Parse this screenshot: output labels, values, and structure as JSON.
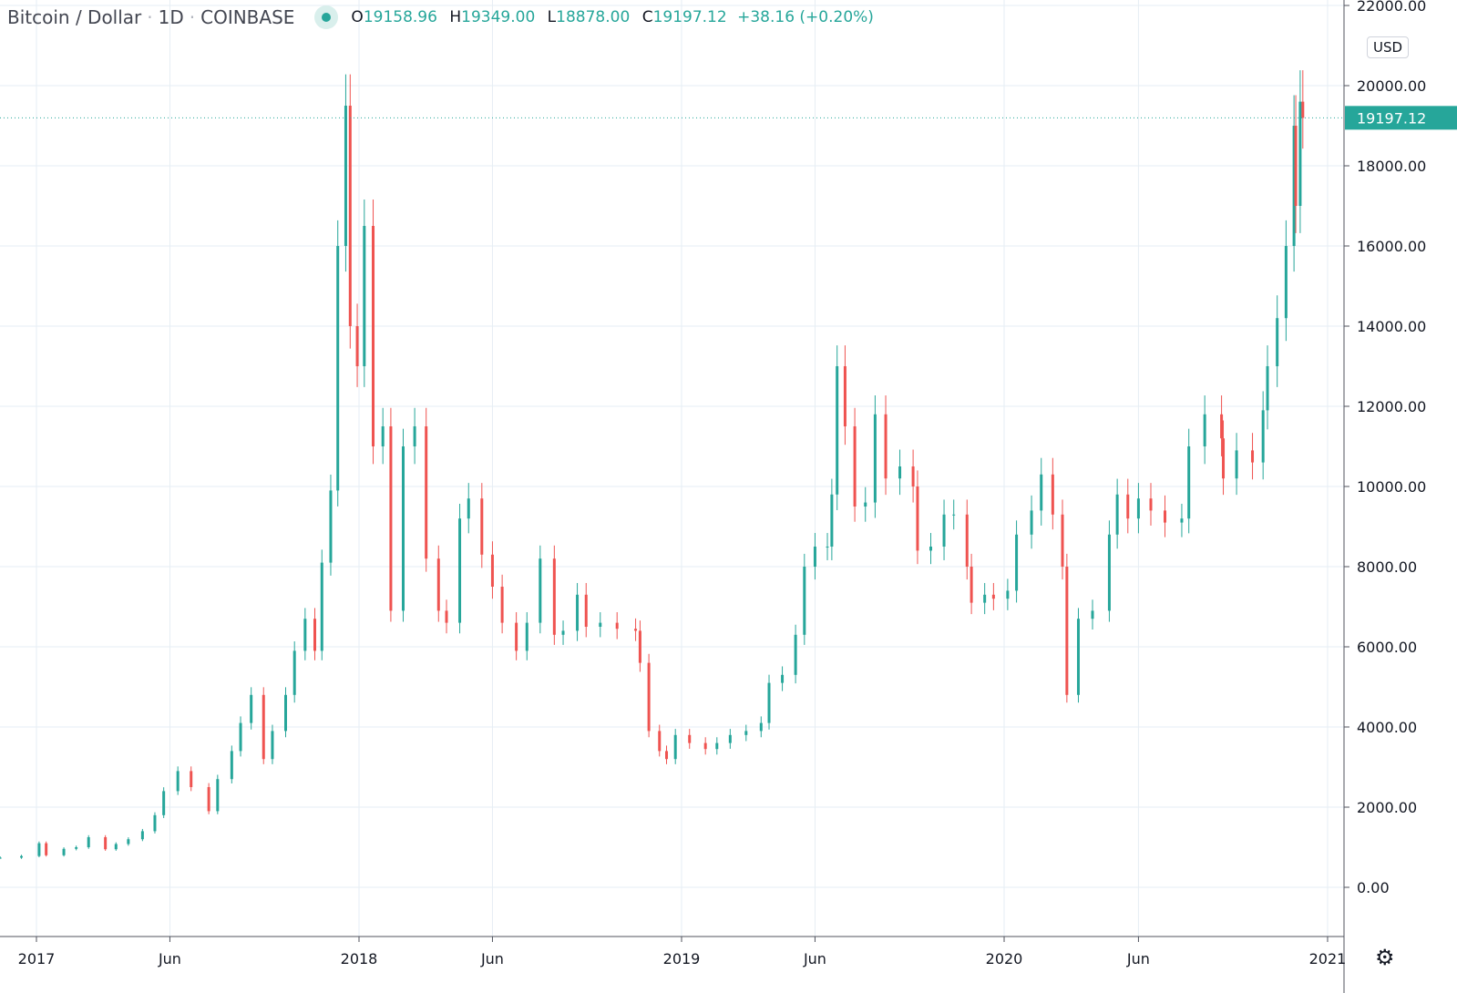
{
  "legend": {
    "symbol": "Bitcoin / Dollar",
    "interval": "1D",
    "exchange": "COINBASE",
    "open": "19158.96",
    "high": "19349.00",
    "low": "18878.00",
    "close": "19197.12",
    "change": "+38.16 (+0.20%)",
    "labels": {
      "o": "O",
      "h": "H",
      "l": "L",
      "c": "C"
    }
  },
  "currency": "USD",
  "icons": {
    "settings": "gear-icon",
    "status": "market-status-dot"
  },
  "colors": {
    "up": "#26a69a",
    "down": "#ef5350",
    "grid": "#e6eef4",
    "axis": "#131722"
  },
  "chart_data": {
    "type": "candlestick",
    "ylim": [
      -1200,
      22000
    ],
    "yticks": [
      0,
      2000,
      4000,
      6000,
      8000,
      10000,
      12000,
      14000,
      16000,
      18000,
      20000,
      22000
    ],
    "ytick_labels": [
      "0.00",
      "2000.00",
      "4000.00",
      "6000.00",
      "8000.00",
      "10000.00",
      "12000.00",
      "14000.00",
      "16000.00",
      "18000.00",
      "20000.00",
      "22000.00"
    ],
    "xticks": [
      {
        "date": "2017-01-01",
        "label": "2017"
      },
      {
        "date": "2017-06-01",
        "label": "Jun"
      },
      {
        "date": "2018-01-01",
        "label": "2018"
      },
      {
        "date": "2018-06-01",
        "label": "Jun"
      },
      {
        "date": "2019-01-01",
        "label": "2019"
      },
      {
        "date": "2019-06-01",
        "label": "Jun"
      },
      {
        "date": "2020-01-01",
        "label": "2020"
      },
      {
        "date": "2020-06-01",
        "label": "Jun"
      },
      {
        "date": "2021-01-01",
        "label": "2021"
      }
    ],
    "last_price": 19197.12,
    "last_price_label": "19197.12",
    "grid": true,
    "closes": [
      [
        "2016-11-21",
        740
      ],
      [
        "2016-12-15",
        780
      ],
      [
        "2017-01-04",
        1100
      ],
      [
        "2017-01-12",
        800
      ],
      [
        "2017-02-01",
        960
      ],
      [
        "2017-02-15",
        1000
      ],
      [
        "2017-03-01",
        1250
      ],
      [
        "2017-03-20",
        950
      ],
      [
        "2017-04-01",
        1080
      ],
      [
        "2017-04-15",
        1200
      ],
      [
        "2017-05-01",
        1400
      ],
      [
        "2017-05-15",
        1800
      ],
      [
        "2017-05-25",
        2400
      ],
      [
        "2017-06-10",
        2900
      ],
      [
        "2017-06-25",
        2500
      ],
      [
        "2017-07-15",
        1900
      ],
      [
        "2017-07-25",
        2700
      ],
      [
        "2017-08-10",
        3400
      ],
      [
        "2017-08-20",
        4100
      ],
      [
        "2017-09-01",
        4800
      ],
      [
        "2017-09-15",
        3200
      ],
      [
        "2017-09-25",
        3900
      ],
      [
        "2017-10-10",
        4800
      ],
      [
        "2017-10-20",
        5900
      ],
      [
        "2017-11-01",
        6700
      ],
      [
        "2017-11-12",
        5900
      ],
      [
        "2017-11-20",
        8100
      ],
      [
        "2017-11-30",
        9900
      ],
      [
        "2017-12-08",
        16000
      ],
      [
        "2017-12-17",
        19500
      ],
      [
        "2017-12-22",
        14000
      ],
      [
        "2017-12-30",
        13000
      ],
      [
        "2018-01-07",
        16500
      ],
      [
        "2018-01-17",
        11000
      ],
      [
        "2018-01-28",
        11500
      ],
      [
        "2018-02-06",
        6900
      ],
      [
        "2018-02-20",
        11000
      ],
      [
        "2018-03-05",
        11500
      ],
      [
        "2018-03-18",
        8200
      ],
      [
        "2018-04-01",
        6900
      ],
      [
        "2018-04-10",
        6600
      ],
      [
        "2018-04-25",
        9200
      ],
      [
        "2018-05-05",
        9700
      ],
      [
        "2018-05-20",
        8300
      ],
      [
        "2018-06-01",
        7500
      ],
      [
        "2018-06-12",
        6600
      ],
      [
        "2018-06-28",
        5900
      ],
      [
        "2018-07-10",
        6600
      ],
      [
        "2018-07-25",
        8200
      ],
      [
        "2018-08-10",
        6300
      ],
      [
        "2018-08-20",
        6400
      ],
      [
        "2018-09-05",
        7300
      ],
      [
        "2018-09-15",
        6500
      ],
      [
        "2018-10-01",
        6600
      ],
      [
        "2018-10-20",
        6450
      ],
      [
        "2018-11-10",
        6400
      ],
      [
        "2018-11-15",
        5600
      ],
      [
        "2018-11-25",
        3900
      ],
      [
        "2018-12-07",
        3400
      ],
      [
        "2018-12-15",
        3200
      ],
      [
        "2018-12-25",
        3800
      ],
      [
        "2019-01-10",
        3600
      ],
      [
        "2019-01-28",
        3450
      ],
      [
        "2019-02-10",
        3600
      ],
      [
        "2019-02-25",
        3800
      ],
      [
        "2019-03-15",
        3900
      ],
      [
        "2019-04-01",
        4100
      ],
      [
        "2019-04-10",
        5100
      ],
      [
        "2019-04-25",
        5300
      ],
      [
        "2019-05-10",
        6300
      ],
      [
        "2019-05-20",
        8000
      ],
      [
        "2019-06-01",
        8500
      ],
      [
        "2019-06-15",
        8500
      ],
      [
        "2019-06-20",
        9800
      ],
      [
        "2019-06-26",
        13000
      ],
      [
        "2019-07-05",
        11500
      ],
      [
        "2019-07-16",
        9500
      ],
      [
        "2019-07-28",
        9600
      ],
      [
        "2019-08-08",
        11800
      ],
      [
        "2019-08-20",
        10200
      ],
      [
        "2019-09-05",
        10500
      ],
      [
        "2019-09-20",
        10000
      ],
      [
        "2019-09-25",
        8400
      ],
      [
        "2019-10-10",
        8500
      ],
      [
        "2019-10-25",
        9300
      ],
      [
        "2019-11-05",
        9300
      ],
      [
        "2019-11-20",
        8000
      ],
      [
        "2019-11-25",
        7100
      ],
      [
        "2019-12-10",
        7300
      ],
      [
        "2019-12-20",
        7200
      ],
      [
        "2020-01-05",
        7400
      ],
      [
        "2020-01-15",
        8800
      ],
      [
        "2020-02-01",
        9400
      ],
      [
        "2020-02-12",
        10300
      ],
      [
        "2020-02-25",
        9300
      ],
      [
        "2020-03-07",
        8000
      ],
      [
        "2020-03-12",
        4800
      ],
      [
        "2020-03-25",
        6700
      ],
      [
        "2020-04-10",
        6900
      ],
      [
        "2020-04-29",
        8800
      ],
      [
        "2020-05-08",
        9800
      ],
      [
        "2020-05-20",
        9200
      ],
      [
        "2020-06-01",
        9700
      ],
      [
        "2020-06-15",
        9400
      ],
      [
        "2020-07-01",
        9100
      ],
      [
        "2020-07-20",
        9200
      ],
      [
        "2020-07-28",
        11000
      ],
      [
        "2020-08-15",
        11800
      ],
      [
        "2020-09-03",
        11200
      ],
      [
        "2020-09-05",
        10200
      ],
      [
        "2020-09-20",
        10900
      ],
      [
        "2020-10-08",
        10600
      ],
      [
        "2020-10-20",
        11900
      ],
      [
        "2020-10-25",
        13000
      ],
      [
        "2020-11-05",
        14200
      ],
      [
        "2020-11-15",
        16000
      ],
      [
        "2020-11-24",
        19000
      ],
      [
        "2020-11-26",
        17000
      ],
      [
        "2020-12-01",
        19600
      ],
      [
        "2020-12-04",
        19197.12
      ]
    ]
  }
}
